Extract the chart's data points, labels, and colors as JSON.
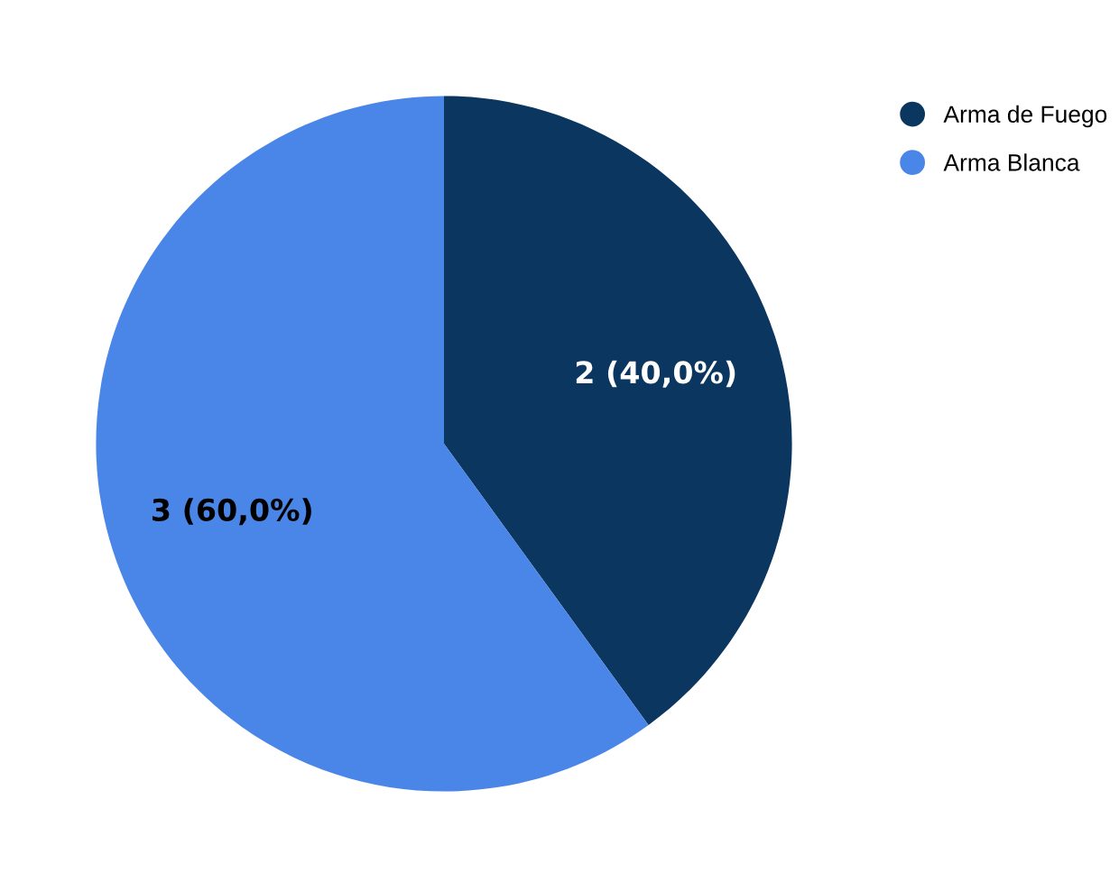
{
  "chart_data": {
    "type": "pie",
    "categories": [
      "Arma de Fuego",
      "Arma Blanca"
    ],
    "values": [
      2,
      3
    ],
    "colors": [
      "#0b365f",
      "#4a86e8"
    ],
    "value_labels": [
      "2 (40,0%)",
      "3 (60,0%)"
    ],
    "legend": "top right"
  }
}
